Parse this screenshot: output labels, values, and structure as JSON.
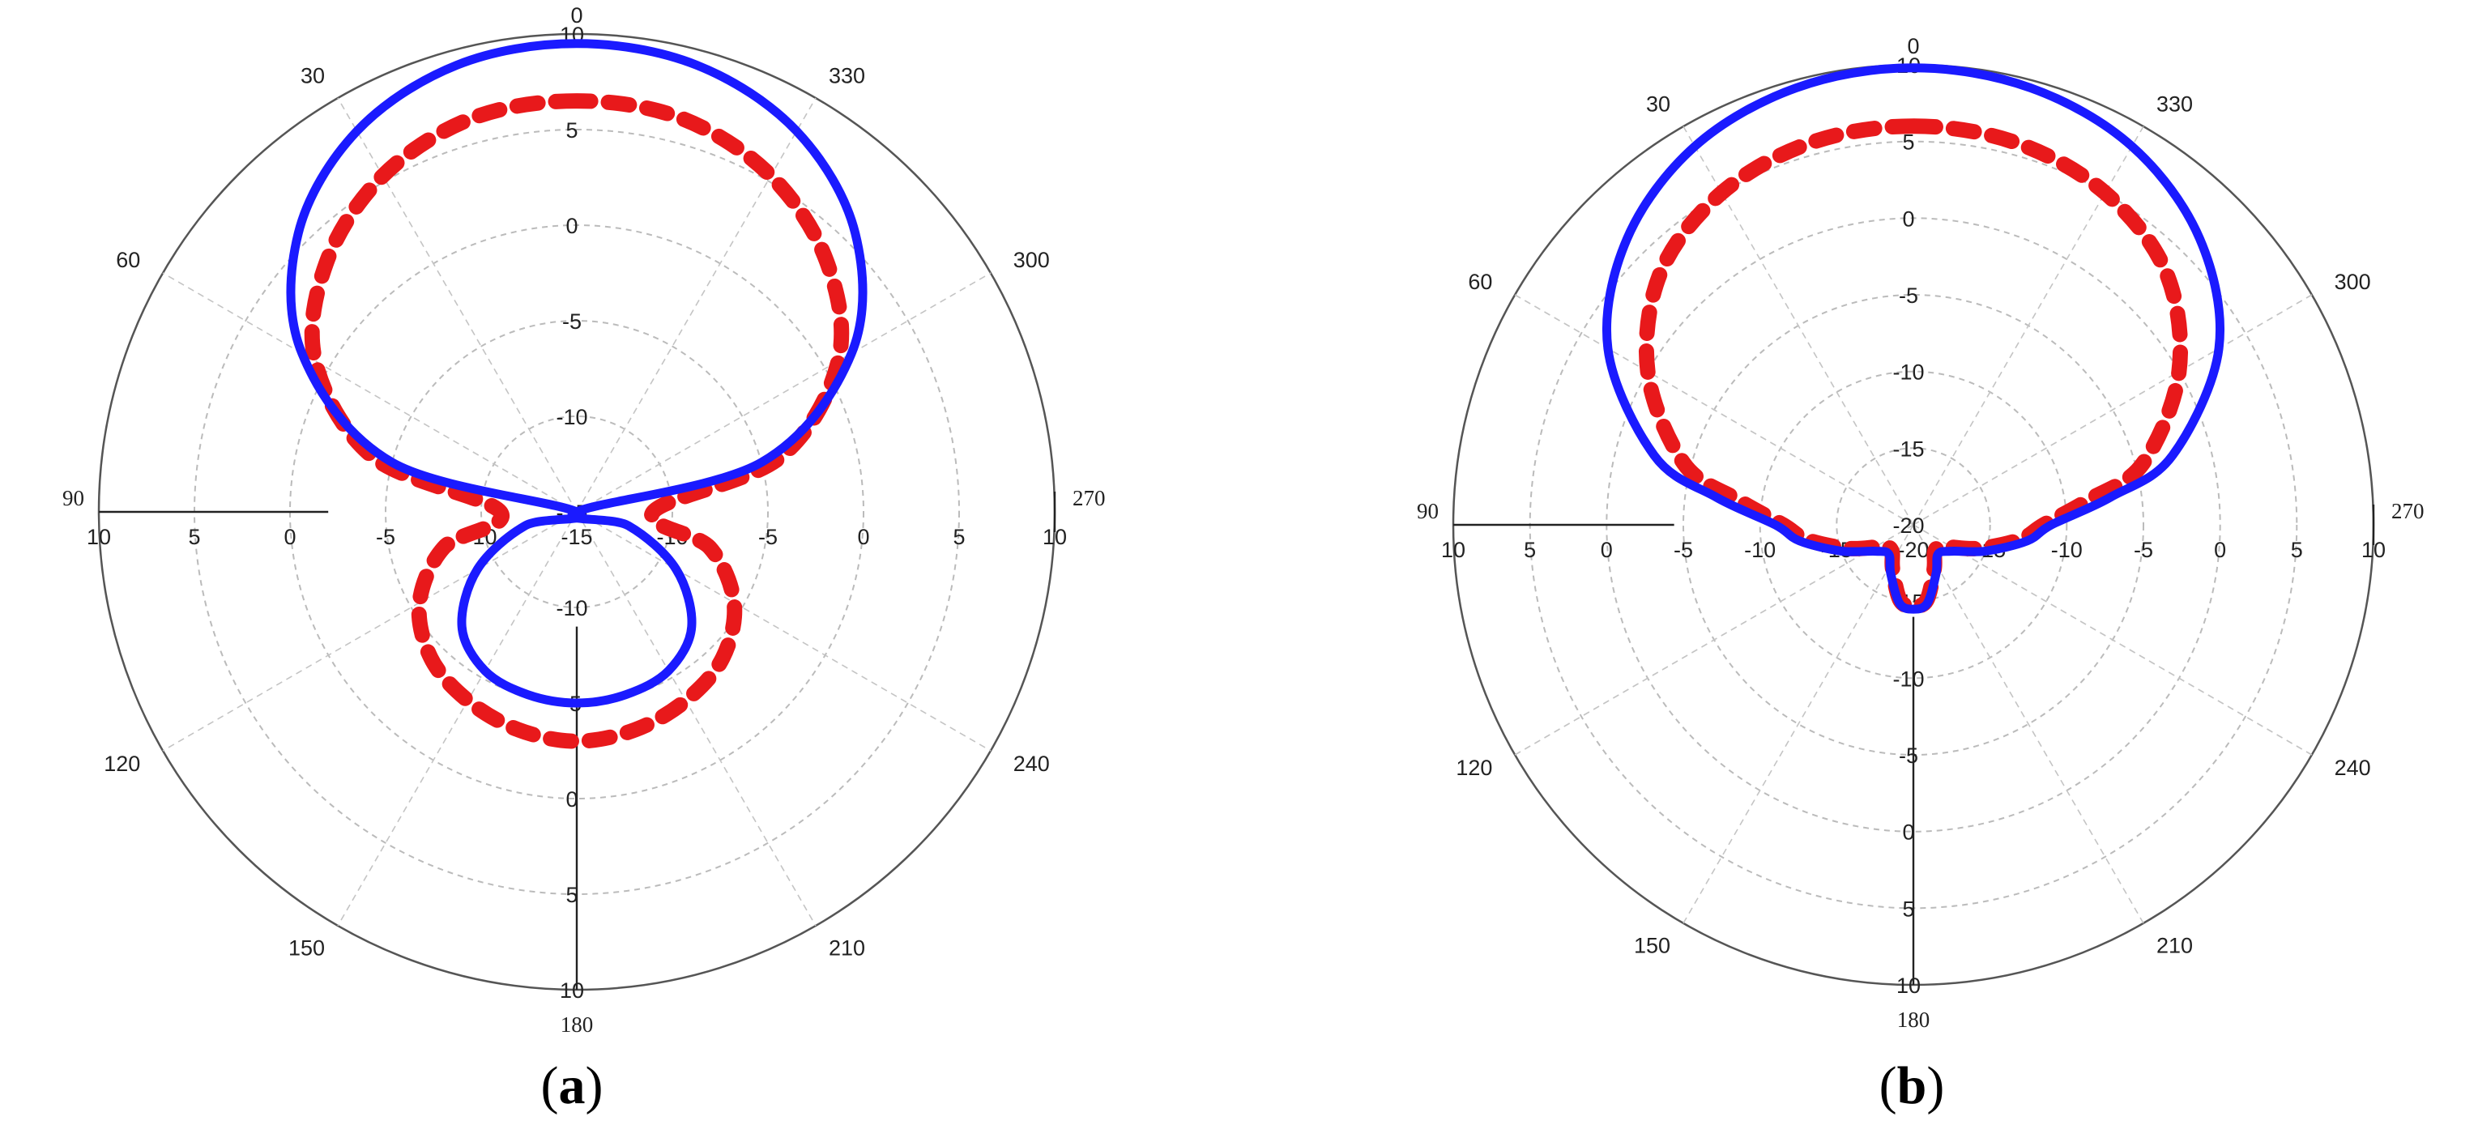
{
  "figure_labels": [
    {
      "open": "(",
      "letter": "a",
      "close": ")"
    },
    {
      "open": "(",
      "letter": "b",
      "close": ")"
    }
  ],
  "chart_data": [
    {
      "type": "polar-line",
      "panel": "a",
      "angle_labels": [
        "0",
        "30",
        "60",
        "90",
        "120",
        "150",
        "180",
        "210",
        "240",
        "270",
        "300",
        "330"
      ],
      "radial_labels_up": [
        "-15",
        "-10",
        "-5",
        "0",
        "5",
        "10"
      ],
      "radial_labels_down": [
        "-10",
        "-5",
        "0",
        "5",
        "10"
      ],
      "radial_labels_horizontal": [
        "10",
        "5",
        "0",
        "-5",
        "-10",
        "-15",
        "-10",
        "-5",
        "0",
        "5",
        "10"
      ],
      "rlim": [
        -15,
        10
      ],
      "ring_step": 5,
      "angle_direction": "counterclockwise from top",
      "grid": true,
      "series": [
        {
          "color": "#1a1aff",
          "style": "solid",
          "theta_deg": [
            0,
            15,
            30,
            45,
            60,
            75,
            90,
            105,
            120,
            135,
            150,
            165,
            180,
            195,
            210,
            225,
            240,
            255,
            270,
            285,
            300,
            315,
            330,
            345
          ],
          "r_db": [
            9.5,
            9.2,
            8.0,
            5.6,
            1.6,
            -5.0,
            -15.0,
            -12.2,
            -9.0,
            -6.5,
            -5.4,
            -5.1,
            -5.0,
            -5.1,
            -5.4,
            -6.5,
            -9.0,
            -12.2,
            -15.0,
            -5.0,
            1.6,
            5.6,
            8.0,
            9.2
          ]
        },
        {
          "color": "#e8191b",
          "style": "dashed",
          "theta_deg": [
            0,
            15,
            30,
            45,
            60,
            75,
            90,
            105,
            120,
            135,
            150,
            165,
            180,
            195,
            210,
            225,
            240,
            255,
            270,
            285,
            300,
            315,
            330,
            345
          ],
          "r_db": [
            6.5,
            6.3,
            5.3,
            3.5,
            0.8,
            -4.0,
            -11.0,
            -7.8,
            -5.5,
            -4.2,
            -3.6,
            -3.2,
            -3.0,
            -3.2,
            -3.6,
            -4.2,
            -5.5,
            -7.8,
            -11.0,
            -4.0,
            0.8,
            3.5,
            5.3,
            6.3
          ]
        }
      ]
    },
    {
      "type": "polar-line",
      "panel": "b",
      "angle_labels": [
        "0",
        "30",
        "60",
        "90",
        "120",
        "150",
        "180",
        "210",
        "240",
        "270",
        "300",
        "330"
      ],
      "radial_labels_up": [
        "-20",
        "-15",
        "-10",
        "-5",
        "0",
        "5",
        "10"
      ],
      "radial_labels_down": [
        "-15",
        "-10",
        "-5",
        "0",
        "5",
        "10"
      ],
      "radial_labels_horizontal": [
        "10",
        "5",
        "0",
        "-5",
        "-10",
        "-15",
        "-20",
        "-15",
        "-10",
        "-5",
        "0",
        "5",
        "10"
      ],
      "rlim": [
        -20,
        10
      ],
      "ring_step": 5,
      "angle_direction": "counterclockwise from top",
      "grid": true,
      "series": [
        {
          "color": "#1a1aff",
          "style": "solid",
          "theta_deg": [
            0,
            15,
            30,
            45,
            60,
            75,
            82,
            90,
            98,
            110,
            125,
            140,
            155,
            170,
            180,
            190,
            205,
            220,
            235,
            250,
            262,
            270,
            278,
            285,
            300,
            315,
            330,
            345
          ],
          "r_db": [
            9.8,
            9.5,
            8.5,
            6.4,
            3.0,
            -2.5,
            -7.0,
            -11.0,
            -12.5,
            -15.0,
            -17.0,
            -17.5,
            -16.5,
            -14.8,
            -14.5,
            -14.8,
            -16.5,
            -17.5,
            -17.0,
            -15.0,
            -12.5,
            -11.0,
            -7.0,
            -2.5,
            3.0,
            6.4,
            8.5,
            9.5
          ]
        },
        {
          "color": "#e8191b",
          "style": "dashed",
          "theta_deg": [
            0,
            15,
            30,
            45,
            60,
            75,
            82,
            90,
            98,
            110,
            125,
            140,
            155,
            170,
            180,
            190,
            205,
            220,
            235,
            250,
            262,
            270,
            278,
            285,
            300,
            315,
            330,
            345
          ],
          "r_db": [
            6.0,
            5.8,
            5.0,
            3.3,
            0.0,
            -4.5,
            -8.5,
            -11.5,
            -13.0,
            -15.5,
            -17.5,
            -17.8,
            -16.8,
            -15.0,
            -14.7,
            -15.0,
            -16.8,
            -17.8,
            -17.5,
            -15.5,
            -13.0,
            -11.5,
            -8.5,
            -4.5,
            0.0,
            3.3,
            5.0,
            5.8
          ]
        }
      ]
    }
  ]
}
